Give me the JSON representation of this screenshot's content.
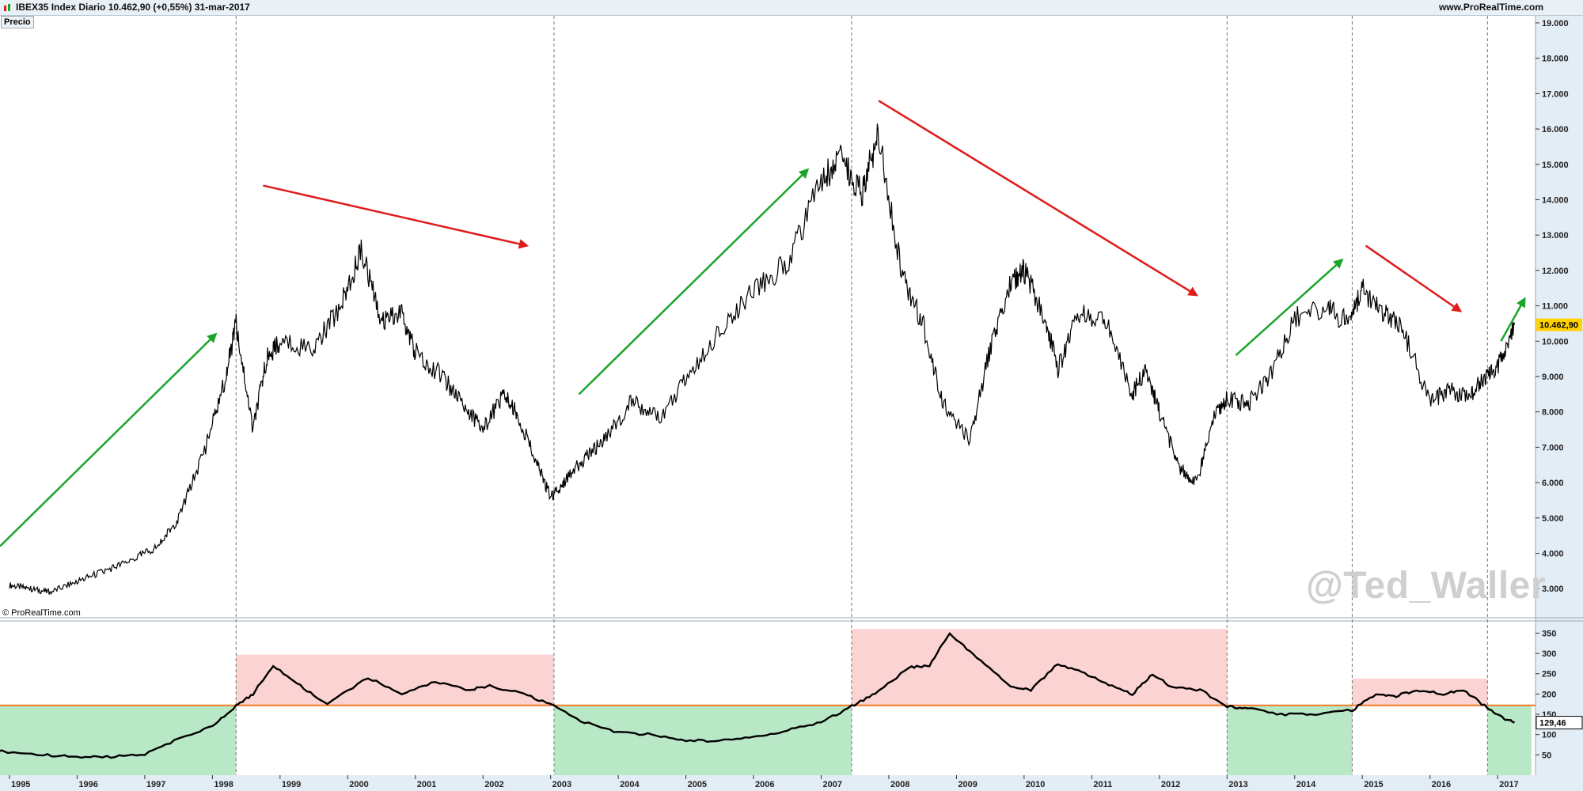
{
  "header": {
    "title": "IBEX35 Index   Diario   10.462,90 (+0,55%)   31-mar-2017",
    "website": "www.ProRealTime.com"
  },
  "panel_label": "Precio",
  "copyright": "© ProRealTime.com",
  "watermark": "@Ted_Waller",
  "colors": {
    "price_line": "#000000",
    "up_arrow": "#1aa52a",
    "down_arrow": "#e01b1b",
    "above_zone": "#fbd3d3",
    "below_zone": "#b8e8c6",
    "threshold": "#f07b27",
    "price_tag": "#ffd200"
  },
  "chart_data": [
    {
      "type": "line",
      "panel": "price",
      "series": [
        {
          "name": "IBEX35 Index",
          "x": [
            1995.0,
            1995.3,
            1995.6,
            1996.0,
            1996.4,
            1996.8,
            1997.2,
            1997.5,
            1997.9,
            1998.2,
            1998.35,
            1998.6,
            1998.8,
            1999.0,
            1999.5,
            1999.9,
            2000.2,
            2000.5,
            2000.8,
            2001.0,
            2001.4,
            2001.7,
            2002.0,
            2002.3,
            2002.5,
            2002.8,
            2003.0,
            2003.2,
            2003.5,
            2003.8,
            2004.2,
            2004.6,
            2005.0,
            2005.5,
            2006.0,
            2006.5,
            2007.0,
            2007.3,
            2007.6,
            2007.85,
            2008.2,
            2008.5,
            2008.8,
            2009.2,
            2009.5,
            2009.8,
            2010.0,
            2010.3,
            2010.5,
            2010.8,
            2011.2,
            2011.6,
            2011.8,
            2012.0,
            2012.3,
            2012.55,
            2012.8,
            2013.0,
            2013.3,
            2013.6,
            2014.0,
            2014.5,
            2014.8,
            2015.0,
            2015.3,
            2015.6,
            2016.0,
            2016.3,
            2016.6,
            2016.8,
            2017.0,
            2017.25
          ],
          "values": [
            3100,
            3000,
            2900,
            3200,
            3500,
            3800,
            4200,
            5000,
            7000,
            9000,
            10500,
            7500,
            9500,
            10000,
            9800,
            11000,
            12600,
            10500,
            10800,
            9700,
            9000,
            8200,
            7500,
            8500,
            8000,
            6500,
            5600,
            6000,
            6700,
            7200,
            8300,
            7800,
            8900,
            10300,
            11500,
            12200,
            14500,
            15200,
            14200,
            15900,
            11800,
            10500,
            8300,
            7200,
            9800,
            11600,
            12000,
            10700,
            9200,
            10800,
            10600,
            8500,
            9200,
            8000,
            6400,
            6000,
            7800,
            8400,
            8200,
            8900,
            10700,
            10900,
            10500,
            11500,
            10800,
            10300,
            8300,
            8600,
            8400,
            9000,
            9300,
            10462.9
          ]
        }
      ],
      "ylim": [
        2200,
        19200
      ],
      "yticks": [
        "3.000",
        "4.000",
        "5.000",
        "6.000",
        "7.000",
        "8.000",
        "9.000",
        "10.000",
        "11.000",
        "12.000",
        "13.000",
        "14.000",
        "15.000",
        "16.000",
        "17.000",
        "18.000",
        "19.000"
      ],
      "xticks": [
        "1995",
        "1996",
        "1997",
        "1998",
        "1999",
        "2000",
        "2001",
        "2002",
        "2003",
        "2004",
        "2005",
        "2006",
        "2007",
        "2008",
        "2009",
        "2010",
        "2011",
        "2012",
        "2013",
        "2014",
        "2015",
        "2016",
        "2017"
      ],
      "last_value_label": "10.462,90",
      "trend_arrows": [
        {
          "from": [
            1994.86,
            4200
          ],
          "to": [
            1998.05,
            10200
          ],
          "direction": "up"
        },
        {
          "from": [
            1998.75,
            14400
          ],
          "to": [
            2002.65,
            12700
          ],
          "direction": "down"
        },
        {
          "from": [
            2003.42,
            8500
          ],
          "to": [
            2006.8,
            14850
          ],
          "direction": "up"
        },
        {
          "from": [
            2007.85,
            16800
          ],
          "to": [
            2012.55,
            11300
          ],
          "direction": "down"
        },
        {
          "from": [
            2013.13,
            9600
          ],
          "to": [
            2014.7,
            12300
          ],
          "direction": "up"
        },
        {
          "from": [
            2015.05,
            12700
          ],
          "to": [
            2016.45,
            10850
          ],
          "direction": "down"
        },
        {
          "from": [
            2017.05,
            10000
          ],
          "to": [
            2017.4,
            11200
          ],
          "direction": "up"
        }
      ],
      "cycle_markers": [
        1998.35,
        2003.05,
        2007.45,
        2013.0,
        2014.85,
        2016.85
      ]
    },
    {
      "type": "line",
      "panel": "indicator",
      "series": [
        {
          "name": "Indicator",
          "x": [
            1994.8,
            1995.5,
            1996.0,
            1996.5,
            1997.0,
            1997.5,
            1998.0,
            1998.35,
            1998.6,
            1998.9,
            1999.3,
            1999.7,
            2000.3,
            2000.8,
            2001.3,
            2001.8,
            2002.1,
            2002.6,
            2003.05,
            2003.5,
            2004.0,
            2004.5,
            2005.0,
            2005.5,
            2006.0,
            2006.5,
            2007.0,
            2007.45,
            2007.8,
            2008.3,
            2008.6,
            2008.9,
            2009.3,
            2009.8,
            2010.1,
            2010.5,
            2010.9,
            2011.3,
            2011.6,
            2011.9,
            2012.2,
            2012.6,
            2013.0,
            2013.3,
            2013.8,
            2014.3,
            2014.85,
            2015.2,
            2015.5,
            2015.8,
            2016.2,
            2016.5,
            2016.85,
            2017.1,
            2017.25
          ],
          "values": [
            60,
            50,
            45,
            45,
            52,
            90,
            120,
            170,
            200,
            270,
            220,
            175,
            240,
            200,
            230,
            210,
            220,
            200,
            170,
            130,
            105,
            100,
            85,
            85,
            95,
            110,
            130,
            170,
            200,
            265,
            270,
            350,
            290,
            220,
            210,
            275,
            250,
            220,
            200,
            250,
            215,
            210,
            170,
            165,
            150,
            150,
            160,
            200,
            195,
            210,
            200,
            210,
            165,
            140,
            129.46
          ]
        }
      ],
      "threshold": 172,
      "ylim": [
        0,
        380
      ],
      "yticks": [
        "50",
        "100",
        "150",
        "200",
        "250",
        "300",
        "350"
      ],
      "last_value_label": "129,46",
      "zones": [
        {
          "x0": 1994.8,
          "x1": 1998.35,
          "y0": 0,
          "y1": 172,
          "type": "below"
        },
        {
          "x0": 1998.35,
          "x1": 2003.05,
          "y0": 172,
          "y1": 297,
          "type": "above"
        },
        {
          "x0": 2003.05,
          "x1": 2007.45,
          "y0": 0,
          "y1": 172,
          "type": "below"
        },
        {
          "x0": 2007.45,
          "x1": 2013.0,
          "y0": 172,
          "y1": 360,
          "type": "above"
        },
        {
          "x0": 2013.0,
          "x1": 2014.85,
          "y0": 0,
          "y1": 172,
          "type": "below"
        },
        {
          "x0": 2014.85,
          "x1": 2016.85,
          "y0": 172,
          "y1": 238,
          "type": "above"
        },
        {
          "x0": 2016.85,
          "x1": 2017.5,
          "y0": 0,
          "y1": 172,
          "type": "below"
        }
      ]
    }
  ]
}
